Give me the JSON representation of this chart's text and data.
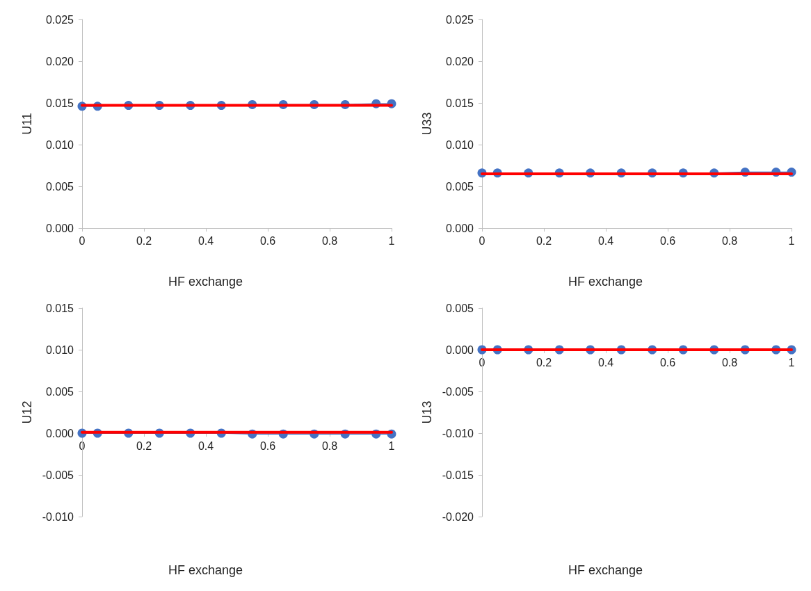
{
  "chart_data": [
    {
      "type": "line",
      "xlabel": "HF exchange",
      "ylabel": "U11",
      "xlim": [
        0,
        1
      ],
      "xticks": [
        0,
        0.2,
        0.4,
        0.6,
        0.8,
        1
      ],
      "ylim": [
        0,
        0.025
      ],
      "yticks": [
        {
          "value": 0,
          "label": "0.000"
        },
        {
          "value": 0.005,
          "label": "0.005"
        },
        {
          "value": 0.01,
          "label": "0.010"
        },
        {
          "value": 0.015,
          "label": "0.015"
        },
        {
          "value": 0.02,
          "label": "0.020"
        },
        {
          "value": 0.025,
          "label": "0.025"
        }
      ],
      "grid": false,
      "series": [
        {
          "color": "#4472c4",
          "marker": "circle",
          "x": [
            0,
            0.05,
            0.15,
            0.25,
            0.35,
            0.45,
            0.55,
            0.65,
            0.75,
            0.85,
            0.95,
            1
          ],
          "values": [
            0.0146,
            0.0146,
            0.0147,
            0.0147,
            0.0147,
            0.0147,
            0.0148,
            0.0148,
            0.0148,
            0.0148,
            0.0149,
            0.0149
          ]
        },
        {
          "color": "#ff0000",
          "marker": "none",
          "x": [
            0,
            1
          ],
          "values": [
            0.0147,
            0.0147
          ]
        }
      ]
    },
    {
      "type": "line",
      "xlabel": "HF exchange",
      "ylabel": "U33",
      "xlim": [
        0,
        1
      ],
      "xticks": [
        0,
        0.2,
        0.4,
        0.6,
        0.8,
        1
      ],
      "ylim": [
        0,
        0.025
      ],
      "yticks": [
        {
          "value": 0,
          "label": "0.000"
        },
        {
          "value": 0.005,
          "label": "0.005"
        },
        {
          "value": 0.01,
          "label": "0.010"
        },
        {
          "value": 0.015,
          "label": "0.015"
        },
        {
          "value": 0.02,
          "label": "0.020"
        },
        {
          "value": 0.025,
          "label": "0.025"
        }
      ],
      "grid": false,
      "series": [
        {
          "color": "#4472c4",
          "marker": "circle",
          "x": [
            0,
            0.05,
            0.15,
            0.25,
            0.35,
            0.45,
            0.55,
            0.65,
            0.75,
            0.85,
            0.95,
            1
          ],
          "values": [
            0.0066,
            0.0066,
            0.0066,
            0.0066,
            0.0066,
            0.0066,
            0.0066,
            0.0066,
            0.0066,
            0.0067,
            0.0067,
            0.0067
          ]
        },
        {
          "color": "#ff0000",
          "marker": "none",
          "x": [
            0,
            1
          ],
          "values": [
            0.0065,
            0.0065
          ]
        }
      ]
    },
    {
      "type": "line",
      "xlabel": "HF exchange",
      "ylabel": "U12",
      "xlim": [
        0,
        1
      ],
      "xticks": [
        0,
        0.2,
        0.4,
        0.6,
        0.8,
        1
      ],
      "ylim": [
        -0.01,
        0.015
      ],
      "yticks": [
        {
          "value": -0.01,
          "label": "-0.010"
        },
        {
          "value": -0.005,
          "label": "-0.005"
        },
        {
          "value": 0,
          "label": "0.000"
        },
        {
          "value": 0.005,
          "label": "0.005"
        },
        {
          "value": 0.01,
          "label": "0.010"
        },
        {
          "value": 0.015,
          "label": "0.015"
        }
      ],
      "grid": false,
      "series": [
        {
          "color": "#4472c4",
          "marker": "circle",
          "x": [
            0,
            0.05,
            0.15,
            0.25,
            0.35,
            0.45,
            0.55,
            0.65,
            0.75,
            0.85,
            0.95,
            1
          ],
          "values": [
            0,
            0,
            0,
            0,
            0,
            0,
            -0.0001,
            -0.0001,
            -0.0001,
            -0.0001,
            -0.0001,
            -0.0001
          ]
        },
        {
          "color": "#ff0000",
          "marker": "none",
          "x": [
            0,
            1
          ],
          "values": [
            0.0001,
            0.0001
          ]
        }
      ]
    },
    {
      "type": "line",
      "xlabel": "HF exchange",
      "ylabel": "U13",
      "xlim": [
        0,
        1
      ],
      "xticks": [
        0,
        0.2,
        0.4,
        0.6,
        0.8,
        1
      ],
      "ylim": [
        -0.02,
        0.005
      ],
      "yticks": [
        {
          "value": -0.02,
          "label": "-0.020"
        },
        {
          "value": -0.015,
          "label": "-0.015"
        },
        {
          "value": -0.01,
          "label": "-0.010"
        },
        {
          "value": -0.005,
          "label": "-0.005"
        },
        {
          "value": 0,
          "label": "0.000"
        },
        {
          "value": 0.005,
          "label": "0.005"
        }
      ],
      "grid": false,
      "series": [
        {
          "color": "#4472c4",
          "marker": "circle",
          "x": [
            0,
            0.05,
            0.15,
            0.25,
            0.35,
            0.45,
            0.55,
            0.65,
            0.75,
            0.85,
            0.95,
            1
          ],
          "values": [
            0,
            0,
            0,
            0,
            0,
            0,
            0,
            0,
            0,
            0,
            0,
            0
          ]
        },
        {
          "color": "#ff0000",
          "marker": "none",
          "x": [
            0,
            1
          ],
          "values": [
            0,
            0
          ]
        }
      ]
    }
  ]
}
